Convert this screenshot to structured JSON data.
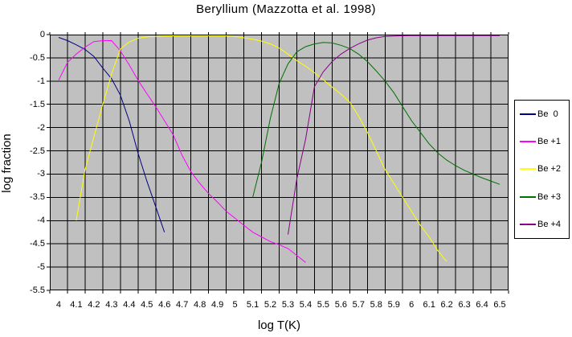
{
  "chart_data": {
    "type": "line",
    "title": "Beryllium (Mazzotta et al. 1998)",
    "xlabel": "log T(K)",
    "ylabel": "log fraction",
    "xlim": [
      4,
      6.5
    ],
    "ylim": [
      -5.5,
      0
    ],
    "grid": true,
    "plot_background": "#c0c0c0",
    "grid_color": "#000000",
    "page_background": "#ffffff",
    "legend_position": "right",
    "x_ticks": [
      "4",
      "4.1",
      "4.2",
      "4.3",
      "4.4",
      "4.5",
      "4.6",
      "4.7",
      "4.8",
      "4.9",
      "5",
      "5.1",
      "5.2",
      "5.3",
      "5.4",
      "5.5",
      "5.6",
      "5.7",
      "5.8",
      "5.9",
      "6",
      "6.1",
      "6.2",
      "6.3",
      "6.4",
      "6.5"
    ],
    "y_ticks": [
      "0",
      "-0.5",
      "-1",
      "-1.5",
      "-2",
      "-2.5",
      "-3",
      "-3.5",
      "-4",
      "-4.5",
      "-5",
      "-5.5"
    ],
    "series": [
      {
        "name": "Be  0",
        "color": "#000080",
        "points": [
          [
            4.0,
            -0.06
          ],
          [
            4.05,
            -0.13
          ],
          [
            4.1,
            -0.22
          ],
          [
            4.15,
            -0.32
          ],
          [
            4.2,
            -0.47
          ],
          [
            4.25,
            -0.72
          ],
          [
            4.3,
            -0.95
          ],
          [
            4.35,
            -1.3
          ],
          [
            4.4,
            -1.85
          ],
          [
            4.45,
            -2.55
          ],
          [
            4.5,
            -3.15
          ],
          [
            4.55,
            -3.7
          ],
          [
            4.6,
            -4.25
          ]
        ]
      },
      {
        "name": "Be +1",
        "color": "#ff00ff",
        "points": [
          [
            4.0,
            -0.98
          ],
          [
            4.05,
            -0.6
          ],
          [
            4.1,
            -0.42
          ],
          [
            4.15,
            -0.27
          ],
          [
            4.2,
            -0.15
          ],
          [
            4.25,
            -0.13
          ],
          [
            4.3,
            -0.13
          ],
          [
            4.35,
            -0.35
          ],
          [
            4.4,
            -0.65
          ],
          [
            4.45,
            -0.98
          ],
          [
            4.5,
            -1.27
          ],
          [
            4.55,
            -1.55
          ],
          [
            4.6,
            -1.85
          ],
          [
            4.65,
            -2.16
          ],
          [
            4.7,
            -2.6
          ],
          [
            4.75,
            -2.95
          ],
          [
            4.8,
            -3.2
          ],
          [
            4.85,
            -3.42
          ],
          [
            4.9,
            -3.6
          ],
          [
            4.95,
            -3.8
          ],
          [
            5.0,
            -3.95
          ],
          [
            5.05,
            -4.1
          ],
          [
            5.1,
            -4.25
          ],
          [
            5.15,
            -4.35
          ],
          [
            5.2,
            -4.45
          ],
          [
            5.25,
            -4.52
          ],
          [
            5.3,
            -4.6
          ],
          [
            5.35,
            -4.75
          ],
          [
            5.4,
            -4.9
          ]
        ]
      },
      {
        "name": "Be +2",
        "color": "#ffff00",
        "points": [
          [
            4.1,
            -4.0
          ],
          [
            4.15,
            -2.9
          ],
          [
            4.2,
            -2.2
          ],
          [
            4.25,
            -1.5
          ],
          [
            4.3,
            -0.85
          ],
          [
            4.35,
            -0.31
          ],
          [
            4.4,
            -0.16
          ],
          [
            4.45,
            -0.08
          ],
          [
            4.5,
            -0.05
          ],
          [
            4.55,
            -0.04
          ],
          [
            4.6,
            -0.03
          ],
          [
            4.7,
            -0.02
          ],
          [
            4.8,
            -0.02
          ],
          [
            4.9,
            -0.02
          ],
          [
            5.0,
            -0.04
          ],
          [
            5.05,
            -0.07
          ],
          [
            5.1,
            -0.1
          ],
          [
            5.15,
            -0.14
          ],
          [
            5.2,
            -0.2
          ],
          [
            5.25,
            -0.29
          ],
          [
            5.3,
            -0.42
          ],
          [
            5.35,
            -0.56
          ],
          [
            5.4,
            -0.68
          ],
          [
            5.45,
            -0.82
          ],
          [
            5.5,
            -0.97
          ],
          [
            5.55,
            -1.13
          ],
          [
            5.6,
            -1.28
          ],
          [
            5.65,
            -1.45
          ],
          [
            5.7,
            -1.75
          ],
          [
            5.75,
            -2.1
          ],
          [
            5.8,
            -2.5
          ],
          [
            5.85,
            -2.9
          ],
          [
            5.9,
            -3.2
          ],
          [
            5.95,
            -3.5
          ],
          [
            6.0,
            -3.8
          ],
          [
            6.05,
            -4.1
          ],
          [
            6.1,
            -4.35
          ],
          [
            6.15,
            -4.65
          ],
          [
            6.2,
            -4.88
          ]
        ]
      },
      {
        "name": "Be +3",
        "color": "#007000",
        "points": [
          [
            5.1,
            -3.5
          ],
          [
            5.15,
            -2.75
          ],
          [
            5.2,
            -1.8
          ],
          [
            5.25,
            -1.05
          ],
          [
            5.3,
            -0.63
          ],
          [
            5.35,
            -0.37
          ],
          [
            5.4,
            -0.26
          ],
          [
            5.45,
            -0.2
          ],
          [
            5.5,
            -0.17
          ],
          [
            5.55,
            -0.18
          ],
          [
            5.6,
            -0.23
          ],
          [
            5.65,
            -0.3
          ],
          [
            5.7,
            -0.42
          ],
          [
            5.75,
            -0.58
          ],
          [
            5.8,
            -0.78
          ],
          [
            5.85,
            -1.0
          ],
          [
            5.9,
            -1.25
          ],
          [
            5.95,
            -1.55
          ],
          [
            6.0,
            -1.85
          ],
          [
            6.05,
            -2.1
          ],
          [
            6.1,
            -2.35
          ],
          [
            6.15,
            -2.55
          ],
          [
            6.2,
            -2.7
          ],
          [
            6.25,
            -2.82
          ],
          [
            6.3,
            -2.92
          ],
          [
            6.35,
            -3.0
          ],
          [
            6.4,
            -3.08
          ],
          [
            6.45,
            -3.15
          ],
          [
            6.5,
            -3.22
          ]
        ]
      },
      {
        "name": "Be +4",
        "color": "#880088",
        "points": [
          [
            5.3,
            -4.3
          ],
          [
            5.35,
            -3.1
          ],
          [
            5.4,
            -2.25
          ],
          [
            5.45,
            -1.12
          ],
          [
            5.5,
            -0.8
          ],
          [
            5.55,
            -0.58
          ],
          [
            5.6,
            -0.42
          ],
          [
            5.65,
            -0.3
          ],
          [
            5.7,
            -0.2
          ],
          [
            5.75,
            -0.12
          ],
          [
            5.8,
            -0.07
          ],
          [
            5.85,
            -0.04
          ],
          [
            5.9,
            -0.03
          ],
          [
            6.0,
            -0.02
          ],
          [
            6.1,
            -0.02
          ],
          [
            6.2,
            -0.02
          ],
          [
            6.3,
            -0.02
          ],
          [
            6.4,
            -0.02
          ],
          [
            6.5,
            -0.02
          ]
        ]
      }
    ]
  }
}
